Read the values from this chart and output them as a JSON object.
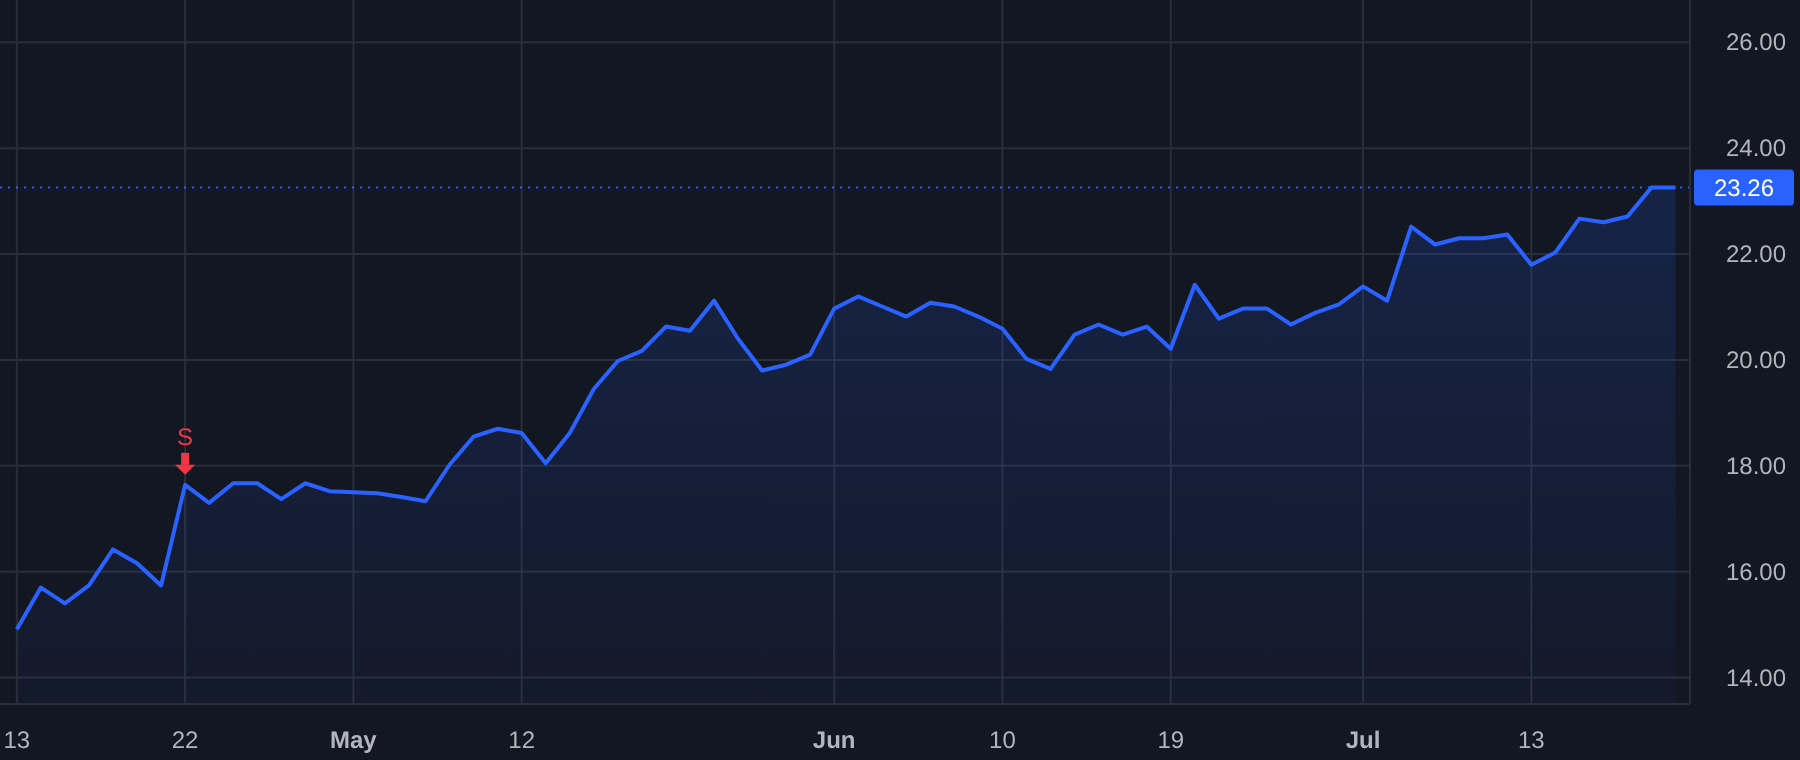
{
  "chart_data": {
    "type": "area",
    "categories": [
      "13",
      null,
      null,
      null,
      null,
      null,
      null,
      "22",
      null,
      null,
      null,
      null,
      null,
      null,
      "May",
      null,
      null,
      null,
      null,
      null,
      null,
      "12",
      null,
      null,
      null,
      null,
      null,
      null,
      null,
      null,
      null,
      null,
      null,
      null,
      "Jun",
      null,
      null,
      null,
      null,
      null,
      null,
      "10",
      null,
      null,
      null,
      null,
      null,
      null,
      "19",
      null,
      null,
      null,
      null,
      null,
      null,
      null,
      "Jul",
      null,
      null,
      null,
      null,
      null,
      null,
      "13",
      null,
      null,
      null,
      null,
      null,
      null
    ],
    "series": [
      {
        "color": "#2962ff",
        "values": [
          14.91,
          15.7,
          15.4,
          15.74,
          16.42,
          16.16,
          15.74,
          17.64,
          17.3,
          17.67,
          17.67,
          17.37,
          17.67,
          17.52,
          17.5,
          17.48,
          17.41,
          17.33,
          18.02,
          18.55,
          18.7,
          18.62,
          18.05,
          18.62,
          19.45,
          19.98,
          20.17,
          20.63,
          20.55,
          21.12,
          20.4,
          19.8,
          19.91,
          20.1,
          20.97,
          21.2,
          21.01,
          20.82,
          21.08,
          21.01,
          20.82,
          20.59,
          20.02,
          19.83,
          20.48,
          20.67,
          20.48,
          20.63,
          20.21,
          21.42,
          20.78,
          20.97,
          20.97,
          20.67,
          20.89,
          21.05,
          21.39,
          21.12,
          22.52,
          22.18,
          22.3,
          22.3,
          22.37,
          21.8,
          22.03,
          22.67,
          22.6,
          22.71,
          23.26,
          23.26
        ]
      }
    ],
    "ylim": [
      13.5,
      26.8
    ],
    "yticks": [
      {
        "value": 14,
        "label": "14.00"
      },
      {
        "value": 16,
        "label": "16.00"
      },
      {
        "value": 18,
        "label": "18.00"
      },
      {
        "value": 20,
        "label": "20.00"
      },
      {
        "value": 22,
        "label": "22.00"
      },
      {
        "value": 24,
        "label": "24.00"
      },
      {
        "value": 26,
        "label": "26.00"
      }
    ],
    "grid": true,
    "ref_lines": [
      {
        "axis": "y",
        "value": 23.26,
        "label": "23.26",
        "color": "#2962ff",
        "line_style": "dotted"
      }
    ],
    "annotations": [
      {
        "text": "S",
        "x": "22",
        "y": 17.64
      }
    ]
  }
}
